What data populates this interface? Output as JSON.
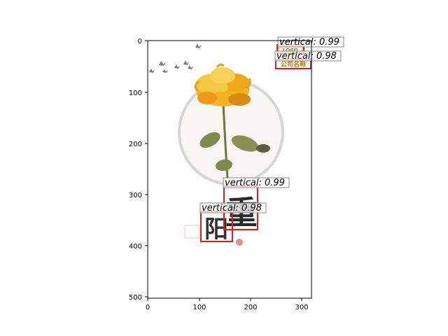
{
  "image": {
    "scene": "watercolor chrysanthemum poster",
    "colors": {
      "box_stroke": "#d81e1e",
      "petal": "#f2b41c",
      "petal_dark": "#d98a14",
      "leaf": "#7d8a4c",
      "ink": "#2a2a2a",
      "seal": "#f08a8a",
      "halo": "#d6d6d6"
    }
  },
  "axes": {
    "x_ticks": [
      "0",
      "100",
      "200",
      "300"
    ],
    "y_ticks": [
      "0",
      "100",
      "200",
      "300",
      "400",
      "500"
    ]
  },
  "detections": [
    {
      "label": "vertical: 0.99"
    },
    {
      "label": "vertical: 0.98"
    },
    {
      "label": "vertical: 0.99"
    },
    {
      "label": "vertical: 0.98"
    }
  ],
  "poster_text": {
    "small_box_text": "LOGO",
    "company_name": "公司名称",
    "calligraphy_top": "重",
    "calligraphy_bottom": "阳"
  }
}
